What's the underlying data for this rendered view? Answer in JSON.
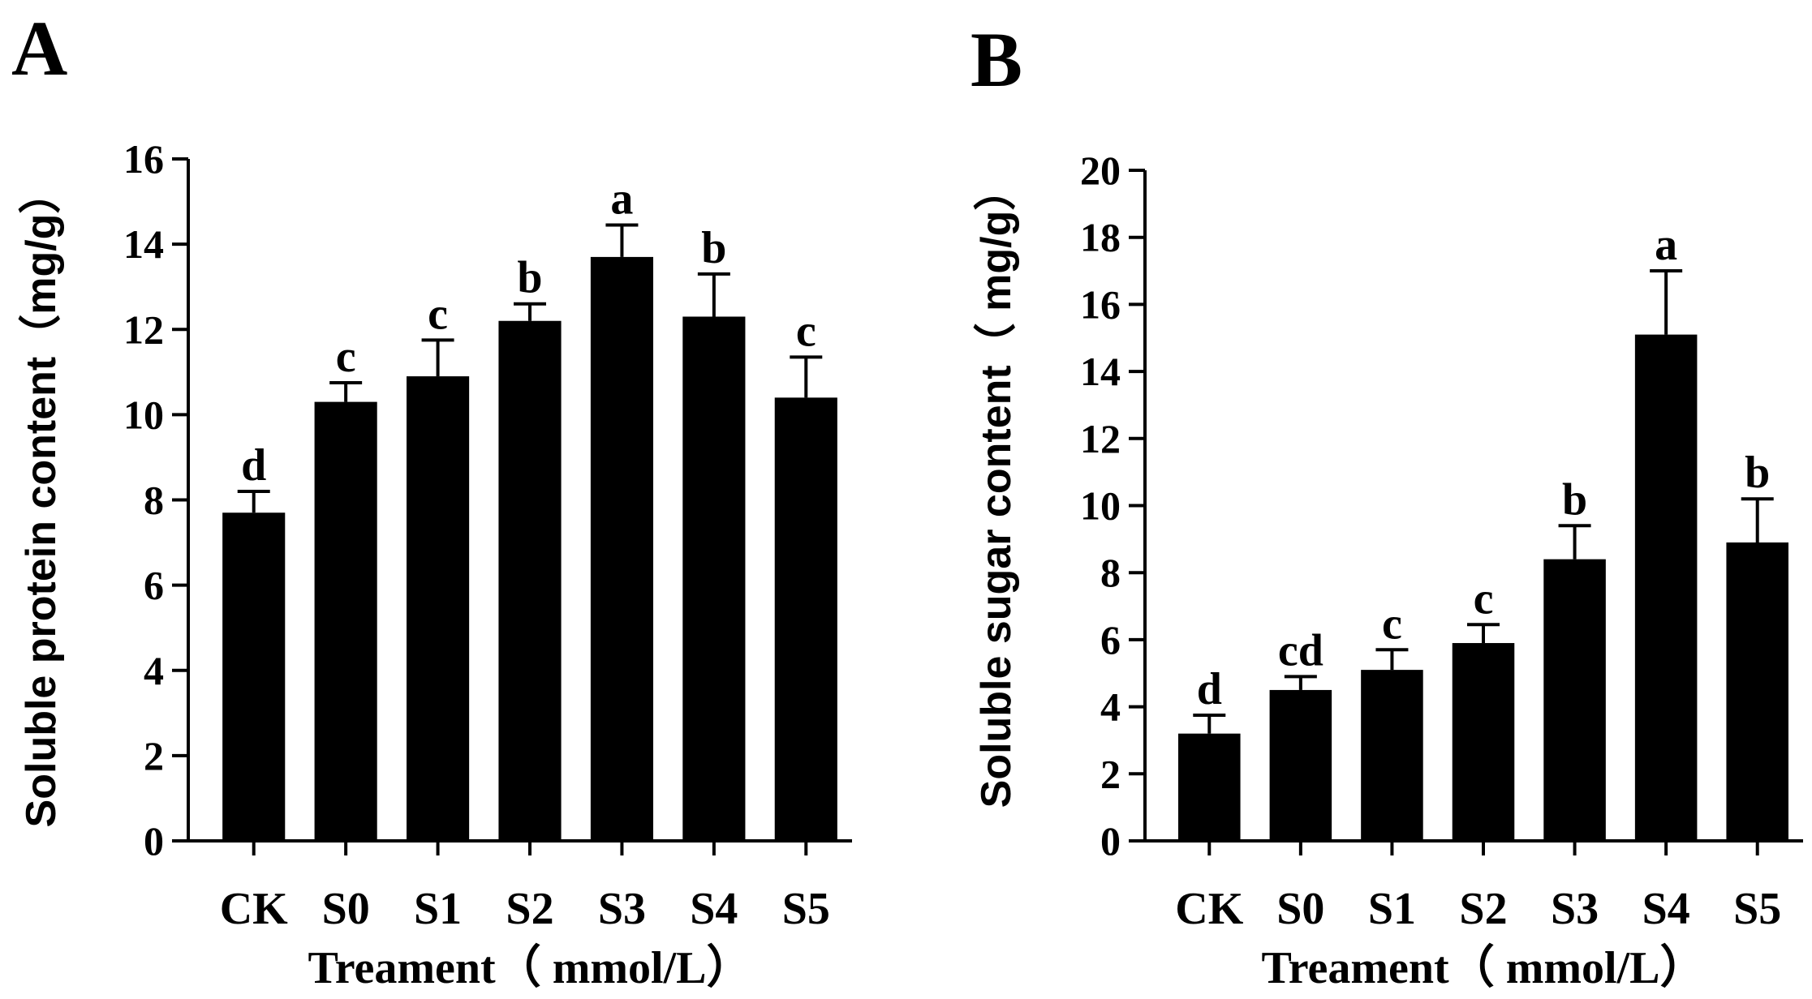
{
  "chart_data": [
    {
      "type": "bar",
      "panel_label": "A",
      "categories": [
        "CK",
        "S0",
        "S1",
        "S2",
        "S3",
        "S4",
        "S5"
      ],
      "values": [
        7.7,
        10.3,
        10.9,
        12.2,
        13.7,
        12.3,
        10.4
      ],
      "errors": [
        0.5,
        0.45,
        0.85,
        0.4,
        0.75,
        1.0,
        0.95
      ],
      "significance": [
        "d",
        "c",
        "c",
        "b",
        "a",
        "b",
        "c"
      ],
      "xlabel": "Treament（ mmol/L）",
      "ylabel": "Soluble protein content（mg/g）",
      "ylim": [
        0,
        16
      ],
      "yticks": [
        0,
        2,
        4,
        6,
        8,
        10,
        12,
        14,
        16
      ],
      "bar_color": "#000000",
      "grid": false
    },
    {
      "type": "bar",
      "panel_label": "B",
      "categories": [
        "CK",
        "S0",
        "S1",
        "S2",
        "S3",
        "S4",
        "S5"
      ],
      "values": [
        3.2,
        4.5,
        5.1,
        5.9,
        8.4,
        15.1,
        8.9
      ],
      "errors": [
        0.55,
        0.4,
        0.6,
        0.55,
        1.0,
        1.9,
        1.3
      ],
      "significance": [
        "d",
        "cd",
        "c",
        "c",
        "b",
        "a",
        "b"
      ],
      "xlabel": "Treament（ mmol/L）",
      "ylabel": "Soluble sugar content（ mg/g）",
      "ylim": [
        0,
        20
      ],
      "yticks": [
        0,
        2,
        4,
        6,
        8,
        10,
        12,
        14,
        16,
        18,
        20
      ],
      "bar_color": "#000000",
      "grid": false
    }
  ]
}
